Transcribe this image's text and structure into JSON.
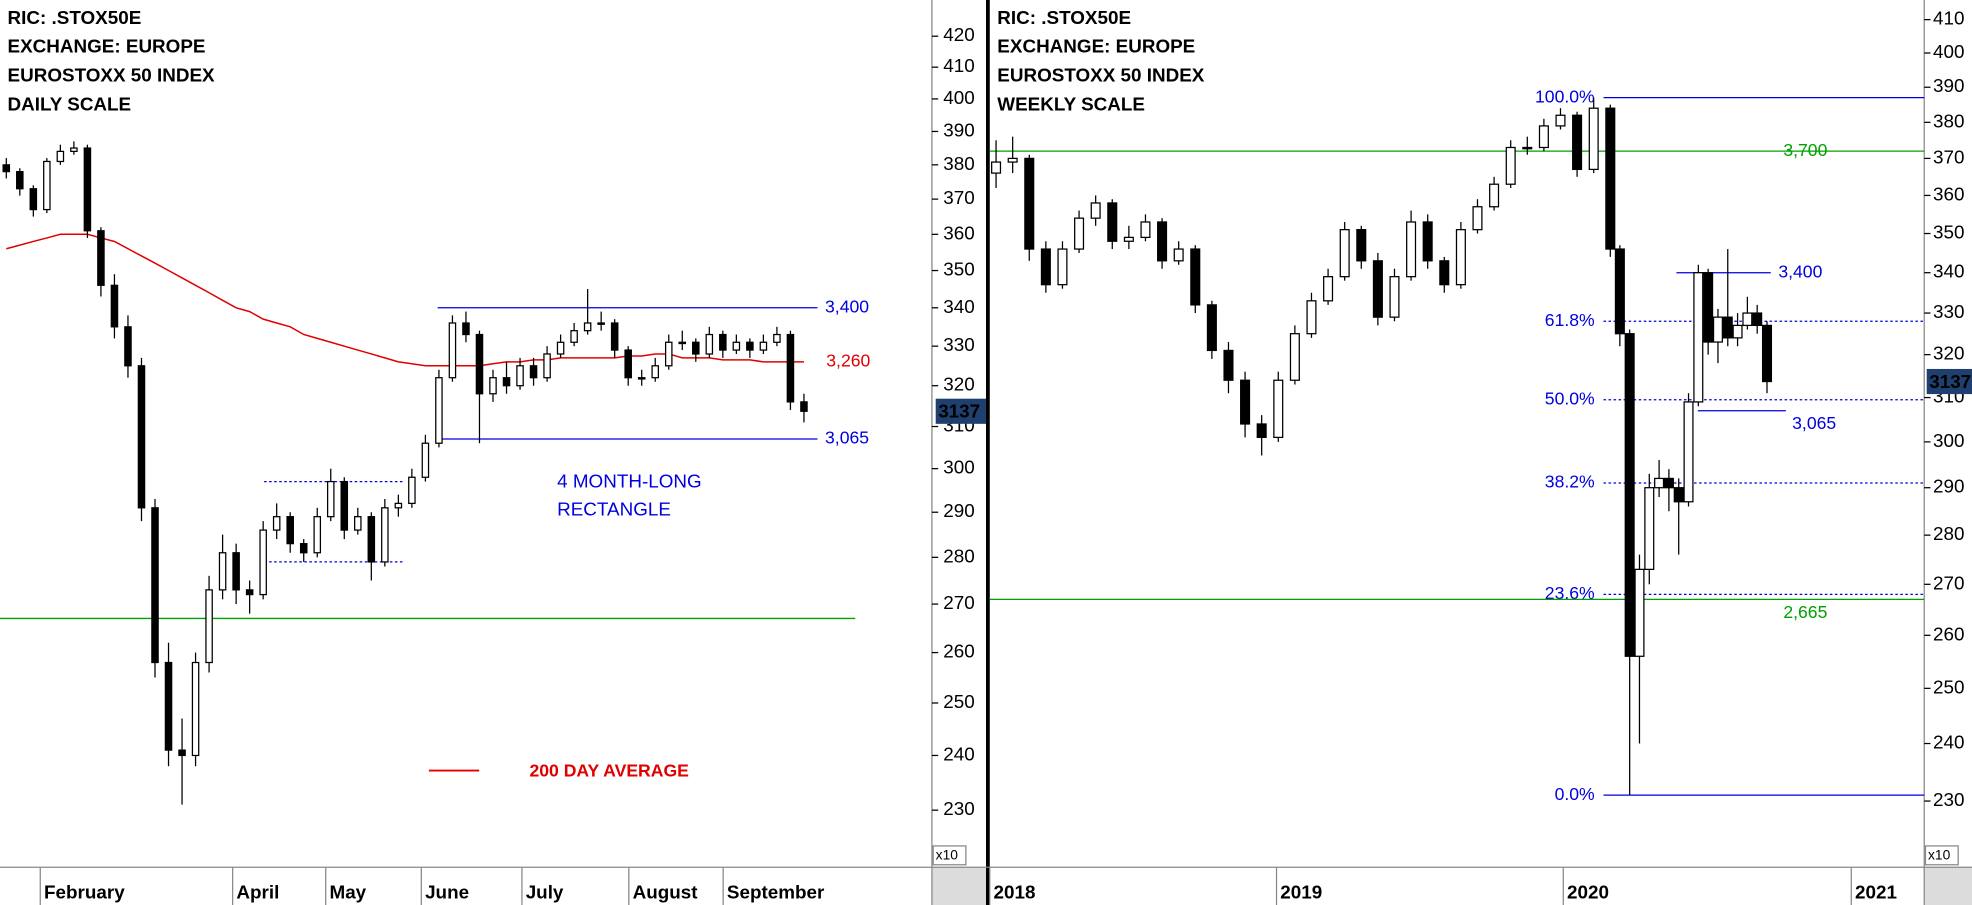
{
  "chart_data": [
    {
      "type": "candlestick",
      "title": [
        "RIC: .STOX50E",
        "EXCHANGE: EUROPE",
        "EUROSTOXX 50 INDEX",
        "DAILY SCALE"
      ],
      "log": true,
      "ylim": [
        220,
        432
      ],
      "yticks": [
        230,
        240,
        250,
        260,
        270,
        280,
        290,
        300,
        310,
        320,
        330,
        340,
        350,
        360,
        370,
        380,
        390,
        400,
        410,
        420
      ],
      "scale_note": "x10",
      "xticks": [
        "February",
        "April",
        "May",
        "June",
        "July",
        "August",
        "September"
      ],
      "last_price": {
        "value": 313.7,
        "label": "3137"
      },
      "up_color": "#ffffff",
      "down_color": "#000000",
      "candles": [
        [
          380,
          382,
          376,
          378
        ],
        [
          378,
          379,
          371,
          373
        ],
        [
          373,
          374,
          365,
          367
        ],
        [
          367,
          382,
          366,
          381
        ],
        [
          381,
          386,
          380,
          384
        ],
        [
          384,
          387,
          383,
          385
        ],
        [
          385,
          386,
          359,
          361
        ],
        [
          361,
          362,
          343,
          346
        ],
        [
          346,
          349,
          332,
          335
        ],
        [
          335,
          338,
          322,
          325
        ],
        [
          325,
          327,
          288,
          291
        ],
        [
          291,
          293,
          255,
          258
        ],
        [
          258,
          262,
          238,
          241
        ],
        [
          241,
          247,
          231,
          240
        ],
        [
          240,
          260,
          238,
          258
        ],
        [
          258,
          276,
          256,
          273
        ],
        [
          273,
          285,
          271,
          281
        ],
        [
          281,
          283,
          270,
          273
        ],
        [
          273,
          275,
          268,
          272
        ],
        [
          272,
          288,
          271,
          286
        ],
        [
          286,
          292,
          284,
          289
        ],
        [
          289,
          290,
          281,
          283
        ],
        [
          283,
          284,
          279,
          281
        ],
        [
          281,
          291,
          280,
          289
        ],
        [
          289,
          300,
          288,
          297
        ],
        [
          297,
          298,
          284,
          286
        ],
        [
          286,
          291,
          285,
          289
        ],
        [
          289,
          290,
          275,
          279
        ],
        [
          279,
          293,
          278,
          291
        ],
        [
          291,
          294,
          289,
          292
        ],
        [
          292,
          300,
          291,
          298
        ],
        [
          298,
          308,
          297,
          306
        ],
        [
          306,
          324,
          305,
          322
        ],
        [
          322,
          338,
          321,
          336
        ],
        [
          336,
          339,
          331,
          333
        ],
        [
          333,
          334,
          306,
          318
        ],
        [
          318,
          324,
          316,
          322
        ],
        [
          322,
          326,
          318,
          320
        ],
        [
          320,
          327,
          319,
          325
        ],
        [
          325,
          327,
          320,
          322
        ],
        [
          322,
          330,
          321,
          328
        ],
        [
          328,
          333,
          327,
          331
        ],
        [
          331,
          336,
          330,
          334
        ],
        [
          334,
          345,
          333,
          336
        ],
        [
          336,
          339,
          334,
          336
        ],
        [
          336,
          337,
          327,
          329
        ],
        [
          329,
          330,
          320,
          322
        ],
        [
          322,
          324,
          320,
          322
        ],
        [
          322,
          327,
          321,
          325
        ],
        [
          325,
          333,
          324,
          331
        ],
        [
          331,
          334,
          329,
          331
        ],
        [
          331,
          332,
          326,
          328
        ],
        [
          328,
          335,
          327,
          333
        ],
        [
          333,
          334,
          327,
          329
        ],
        [
          329,
          333,
          328,
          331
        ],
        [
          331,
          332,
          327,
          329
        ],
        [
          329,
          333,
          328,
          331
        ],
        [
          331,
          335,
          330,
          333
        ],
        [
          333,
          334,
          314,
          316
        ],
        [
          316,
          318,
          311,
          313.7
        ]
      ],
      "ma": {
        "name": "200 DAY AVERAGE",
        "color": "#e00000",
        "values": [
          356,
          357,
          358,
          359,
          360,
          360,
          360,
          359,
          358,
          356,
          354,
          352,
          350,
          348,
          346,
          344,
          342,
          340,
          339,
          337,
          336,
          335,
          333,
          332,
          331,
          330,
          329,
          328,
          327,
          326,
          325.5,
          325,
          325,
          325,
          325,
          325,
          325.5,
          326,
          326,
          326.5,
          326.5,
          327,
          327,
          327,
          327,
          327,
          327.5,
          327.5,
          328,
          328,
          327,
          327,
          327,
          326.5,
          326.5,
          326.5,
          326,
          326,
          326,
          326
        ],
        "last_label": {
          "value": 326,
          "label": "3,260"
        }
      },
      "levels": [
        {
          "value": 340,
          "label": "3,400",
          "color": "#0000e0",
          "style": "solid"
        },
        {
          "value": 307,
          "label": "3,065",
          "color": "#0000e0",
          "style": "solid"
        },
        {
          "value": 267,
          "color": "#00a000",
          "style": "solid"
        },
        {
          "value": 297,
          "color": "#0000e0",
          "style": "dotted"
        },
        {
          "value": 279,
          "color": "#0000e0",
          "style": "dotted"
        }
      ],
      "annotation": {
        "lines": [
          "4 MONTH-LONG",
          "RECTANGLE"
        ],
        "color": "#0000e0"
      }
    },
    {
      "type": "candlestick",
      "title": [
        "RIC: .STOX50E",
        "EXCHANGE: EUROPE",
        "EUROSTOXX 50 INDEX",
        "WEEKLY SCALE"
      ],
      "log": true,
      "ylim": [
        219,
        416
      ],
      "yticks": [
        230,
        240,
        250,
        260,
        270,
        280,
        290,
        300,
        310,
        320,
        330,
        340,
        350,
        360,
        370,
        380,
        390,
        400,
        410
      ],
      "scale_note": "x10",
      "xticks": [
        "2018",
        "2019",
        "2020",
        "2021"
      ],
      "last_price": {
        "value": 313.7,
        "label": "3137"
      },
      "up_color": "#ffffff",
      "down_color": "#000000",
      "candles": [
        [
          366,
          375,
          362,
          369
        ],
        [
          369,
          376,
          366,
          370
        ],
        [
          370,
          371,
          343,
          346
        ],
        [
          346,
          348,
          335,
          337
        ],
        [
          337,
          348,
          336,
          346
        ],
        [
          346,
          356,
          345,
          354
        ],
        [
          354,
          360,
          352,
          358
        ],
        [
          358,
          359,
          346,
          348
        ],
        [
          348,
          352,
          346,
          349
        ],
        [
          349,
          355,
          348,
          353
        ],
        [
          353,
          354,
          341,
          343
        ],
        [
          343,
          348,
          342,
          346
        ],
        [
          346,
          347,
          330,
          332
        ],
        [
          332,
          333,
          319,
          321
        ],
        [
          321,
          323,
          311,
          314
        ],
        [
          314,
          316,
          301,
          304
        ],
        [
          304,
          306,
          297,
          301
        ],
        [
          301,
          316,
          300,
          314
        ],
        [
          314,
          327,
          313,
          325
        ],
        [
          325,
          335,
          324,
          333
        ],
        [
          333,
          341,
          332,
          339
        ],
        [
          339,
          353,
          338,
          351
        ],
        [
          351,
          352,
          341,
          343
        ],
        [
          343,
          345,
          327,
          329
        ],
        [
          329,
          341,
          328,
          339
        ],
        [
          339,
          356,
          338,
          353
        ],
        [
          353,
          355,
          341,
          343
        ],
        [
          343,
          344,
          335,
          337
        ],
        [
          337,
          353,
          336,
          351
        ],
        [
          351,
          359,
          350,
          357
        ],
        [
          357,
          365,
          356,
          363
        ],
        [
          363,
          375,
          362,
          373
        ],
        [
          373,
          376,
          371,
          373
        ],
        [
          373,
          381,
          372,
          379
        ],
        [
          379,
          384,
          378,
          382
        ],
        [
          382,
          383,
          365,
          367
        ],
        [
          367,
          387,
          366,
          384
        ],
        [
          384,
          385,
          344,
          346
        ],
        [
          346,
          347,
          322,
          325
        ],
        [
          325,
          326,
          231,
          256
        ],
        [
          256,
          276,
          240,
          273
        ],
        [
          273,
          293,
          270,
          290
        ],
        [
          290,
          296,
          288,
          292
        ],
        [
          292,
          294,
          285,
          290
        ],
        [
          290,
          292,
          276,
          287
        ],
        [
          287,
          311,
          286,
          309
        ],
        [
          309,
          342,
          308,
          340
        ],
        [
          340,
          341,
          320,
          323
        ],
        [
          323,
          331,
          318,
          329
        ],
        [
          329,
          346,
          322,
          324
        ],
        [
          324,
          330,
          322,
          327
        ],
        [
          327,
          334,
          326,
          330
        ],
        [
          330,
          332,
          325,
          327
        ],
        [
          327,
          328,
          311,
          313.7
        ]
      ],
      "levels": [
        {
          "value": 387,
          "label": "100.0%",
          "color": "#0000e0",
          "style": "solid"
        },
        {
          "value": 372,
          "label": "3,700",
          "color": "#00a000",
          "style": "solid"
        },
        {
          "value": 340,
          "label": "3,400",
          "color": "#0000e0",
          "style": "solid"
        },
        {
          "value": 328,
          "label": "61.8%",
          "color": "#0000e0",
          "style": "dotted"
        },
        {
          "value": 309.5,
          "label": "50.0%",
          "color": "#0000e0",
          "style": "dotted"
        },
        {
          "value": 307,
          "label": "3,065",
          "color": "#0000e0",
          "style": "solid"
        },
        {
          "value": 291,
          "label": "38.2%",
          "color": "#0000e0",
          "style": "dotted"
        },
        {
          "value": 268,
          "label": "23.6%",
          "color": "#0000e0",
          "style": "dotted"
        },
        {
          "value": 267,
          "label": "2,665",
          "color": "#00a000",
          "style": "solid"
        },
        {
          "value": 231,
          "label": "0.0%",
          "color": "#0000e0",
          "style": "solid"
        }
      ]
    }
  ]
}
